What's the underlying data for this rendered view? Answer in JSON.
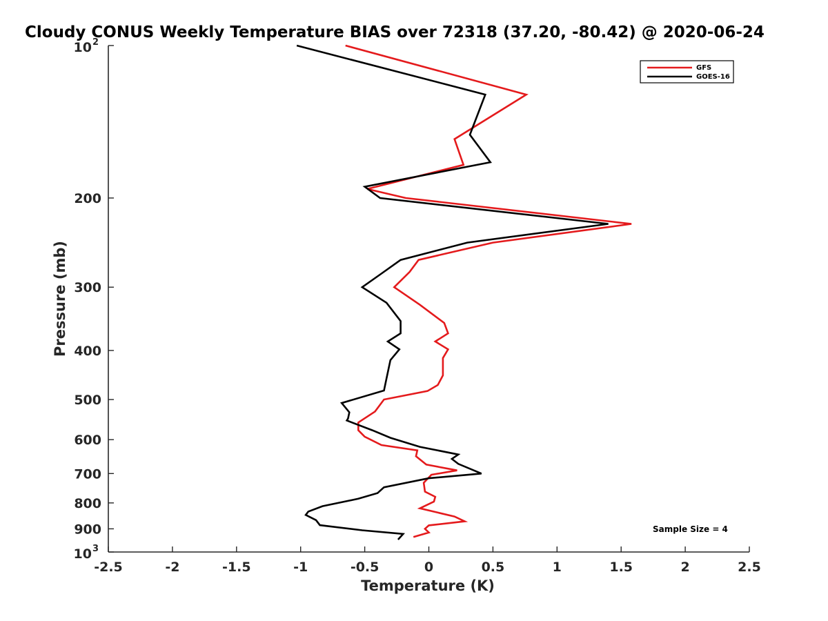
{
  "chart_data": {
    "type": "line",
    "title": "Cloudy CONUS Weekly Temperature BIAS over 72318 (37.20, -80.42) @ 2020-06-24",
    "xlabel": "Temperature (K)",
    "ylabel": "Pressure (mb)",
    "xlim": [
      -2.5,
      2.5
    ],
    "ylim": [
      100,
      1000
    ],
    "y_scale": "log",
    "y_reversed": true,
    "grid": false,
    "x_ticks": [
      {
        "value": -2.5,
        "label": "-2.5"
      },
      {
        "value": -2,
        "label": "-2"
      },
      {
        "value": -1.5,
        "label": "-1.5"
      },
      {
        "value": -1,
        "label": "-1"
      },
      {
        "value": -0.5,
        "label": "-0.5"
      },
      {
        "value": 0,
        "label": "0"
      },
      {
        "value": 0.5,
        "label": "0.5"
      },
      {
        "value": 1,
        "label": "1"
      },
      {
        "value": 1.5,
        "label": "1.5"
      },
      {
        "value": 2,
        "label": "2"
      },
      {
        "value": 2.5,
        "label": "2.5"
      }
    ],
    "y_ticks": [
      {
        "value": 200,
        "label": "200"
      },
      {
        "value": 300,
        "label": "300"
      },
      {
        "value": 400,
        "label": "400"
      },
      {
        "value": 500,
        "label": "500"
      },
      {
        "value": 600,
        "label": "600"
      },
      {
        "value": 700,
        "label": "700"
      },
      {
        "value": 800,
        "label": "800"
      },
      {
        "value": 900,
        "label": "900"
      }
    ],
    "y_power_ticks": [
      {
        "value": 100,
        "base": "10",
        "exponent": "2"
      },
      {
        "value": 1000,
        "base": "10",
        "exponent": "3"
      }
    ],
    "legend": {
      "placement": "top-right",
      "entries": [
        {
          "name": "GFS",
          "color": "#e41a1c"
        },
        {
          "name": "GOES-16",
          "color": "#000000"
        }
      ]
    },
    "annotation": "Sample Size = 4",
    "series": [
      {
        "name": "GFS",
        "color": "#e41a1c",
        "points": [
          [
            -0.65,
            100
          ],
          [
            0.76,
            125
          ],
          [
            0.2,
            153
          ],
          [
            0.27,
            172
          ],
          [
            -0.48,
            192
          ],
          [
            -0.18,
            200
          ],
          [
            1.58,
            225
          ],
          [
            0.5,
            245
          ],
          [
            -0.08,
            265
          ],
          [
            -0.15,
            280
          ],
          [
            -0.27,
            300
          ],
          [
            -0.07,
            325
          ],
          [
            0.12,
            353
          ],
          [
            0.15,
            370
          ],
          [
            0.05,
            384
          ],
          [
            0.15,
            398
          ],
          [
            0.11,
            414
          ],
          [
            0.11,
            448
          ],
          [
            0.07,
            468
          ],
          [
            -0.01,
            481
          ],
          [
            -0.35,
            500
          ],
          [
            -0.42,
            528
          ],
          [
            -0.55,
            555
          ],
          [
            -0.55,
            575
          ],
          [
            -0.5,
            592
          ],
          [
            -0.37,
            615
          ],
          [
            -0.09,
            630
          ],
          [
            -0.1,
            647
          ],
          [
            -0.02,
            672
          ],
          [
            0.22,
            690
          ],
          [
            0.02,
            704
          ],
          [
            -0.04,
            730
          ],
          [
            -0.03,
            760
          ],
          [
            0.05,
            778
          ],
          [
            0.04,
            795
          ],
          [
            -0.07,
            820
          ],
          [
            0.2,
            851
          ],
          [
            0.28,
            870
          ],
          [
            0.0,
            886
          ],
          [
            -0.03,
            900
          ],
          [
            0.0,
            915
          ],
          [
            -0.12,
            934
          ]
        ]
      },
      {
        "name": "GOES-16",
        "color": "#000000",
        "points": [
          [
            -1.03,
            100
          ],
          [
            0.44,
            125
          ],
          [
            0.32,
            150
          ],
          [
            0.48,
            170
          ],
          [
            -0.5,
            190
          ],
          [
            -0.38,
            200
          ],
          [
            1.4,
            225
          ],
          [
            0.3,
            245
          ],
          [
            -0.22,
            265
          ],
          [
            -0.37,
            282
          ],
          [
            -0.52,
            300
          ],
          [
            -0.33,
            322
          ],
          [
            -0.22,
            350
          ],
          [
            -0.22,
            370
          ],
          [
            -0.32,
            384
          ],
          [
            -0.23,
            398
          ],
          [
            -0.3,
            418
          ],
          [
            -0.33,
            454
          ],
          [
            -0.35,
            480
          ],
          [
            -0.68,
            508
          ],
          [
            -0.62,
            530
          ],
          [
            -0.63,
            545
          ],
          [
            -0.64,
            550
          ],
          [
            -0.44,
            575
          ],
          [
            -0.3,
            595
          ],
          [
            -0.07,
            620
          ],
          [
            0.23,
            642
          ],
          [
            0.18,
            655
          ],
          [
            0.23,
            670
          ],
          [
            0.41,
            700
          ],
          [
            0.0,
            715
          ],
          [
            -0.35,
            745
          ],
          [
            -0.4,
            765
          ],
          [
            -0.55,
            785
          ],
          [
            -0.83,
            812
          ],
          [
            -0.94,
            832
          ],
          [
            -0.96,
            845
          ],
          [
            -0.88,
            865
          ],
          [
            -0.85,
            885
          ],
          [
            -0.52,
            906
          ],
          [
            -0.2,
            921
          ],
          [
            -0.24,
            945
          ]
        ]
      }
    ]
  }
}
